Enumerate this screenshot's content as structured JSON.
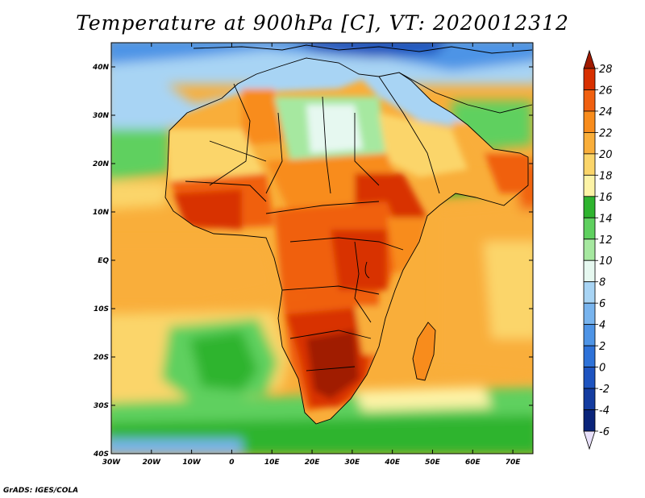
{
  "title": "Temperature at 900hPa [C], VT: 2020012312",
  "credit": "GrADS: IGES/COLA",
  "map": {
    "lon_range": [
      -30,
      75
    ],
    "lat_range": [
      -40,
      45
    ],
    "lon_ticks": [
      {
        "value": -30,
        "label": "30W"
      },
      {
        "value": -20,
        "label": "20W"
      },
      {
        "value": -10,
        "label": "10W"
      },
      {
        "value": 0,
        "label": "0"
      },
      {
        "value": 10,
        "label": "10E"
      },
      {
        "value": 20,
        "label": "20E"
      },
      {
        "value": 30,
        "label": "30E"
      },
      {
        "value": 40,
        "label": "40E"
      },
      {
        "value": 50,
        "label": "50E"
      },
      {
        "value": 60,
        "label": "60E"
      },
      {
        "value": 70,
        "label": "70E"
      }
    ],
    "lat_ticks": [
      {
        "value": 40,
        "label": "40N"
      },
      {
        "value": 30,
        "label": "30N"
      },
      {
        "value": 20,
        "label": "20N"
      },
      {
        "value": 10,
        "label": "10N"
      },
      {
        "value": 0,
        "label": "EQ"
      },
      {
        "value": -10,
        "label": "10S"
      },
      {
        "value": -20,
        "label": "20S"
      },
      {
        "value": -30,
        "label": "30S"
      },
      {
        "value": -40,
        "label": "40S"
      }
    ]
  },
  "colorbar": {
    "levels": [
      {
        "value": "28",
        "color": "#a01a00"
      },
      {
        "value": "26",
        "color": "#d83000"
      },
      {
        "value": "24",
        "color": "#f06010"
      },
      {
        "value": "22",
        "color": "#f88c1c"
      },
      {
        "value": "20",
        "color": "#f9ae3a"
      },
      {
        "value": "18",
        "color": "#fbd56a"
      },
      {
        "value": "16",
        "color": "#fdf3a6"
      },
      {
        "value": "14",
        "color": "#2fb42f"
      },
      {
        "value": "12",
        "color": "#5fd05f"
      },
      {
        "value": "10",
        "color": "#a6e8a0"
      },
      {
        "value": "8",
        "color": "#e6f8f0"
      },
      {
        "value": "6",
        "color": "#a8d4f4"
      },
      {
        "value": "4",
        "color": "#78b4ee"
      },
      {
        "value": "2",
        "color": "#4e94e6"
      },
      {
        "value": "0",
        "color": "#2e72d8"
      },
      {
        "value": "-2",
        "color": "#1e54c0"
      },
      {
        "value": "-4",
        "color": "#143ca0"
      },
      {
        "value": "-6",
        "color": "#0a247a"
      }
    ],
    "over_color": "#a01a00",
    "under_color": "#e8e0fa"
  }
}
